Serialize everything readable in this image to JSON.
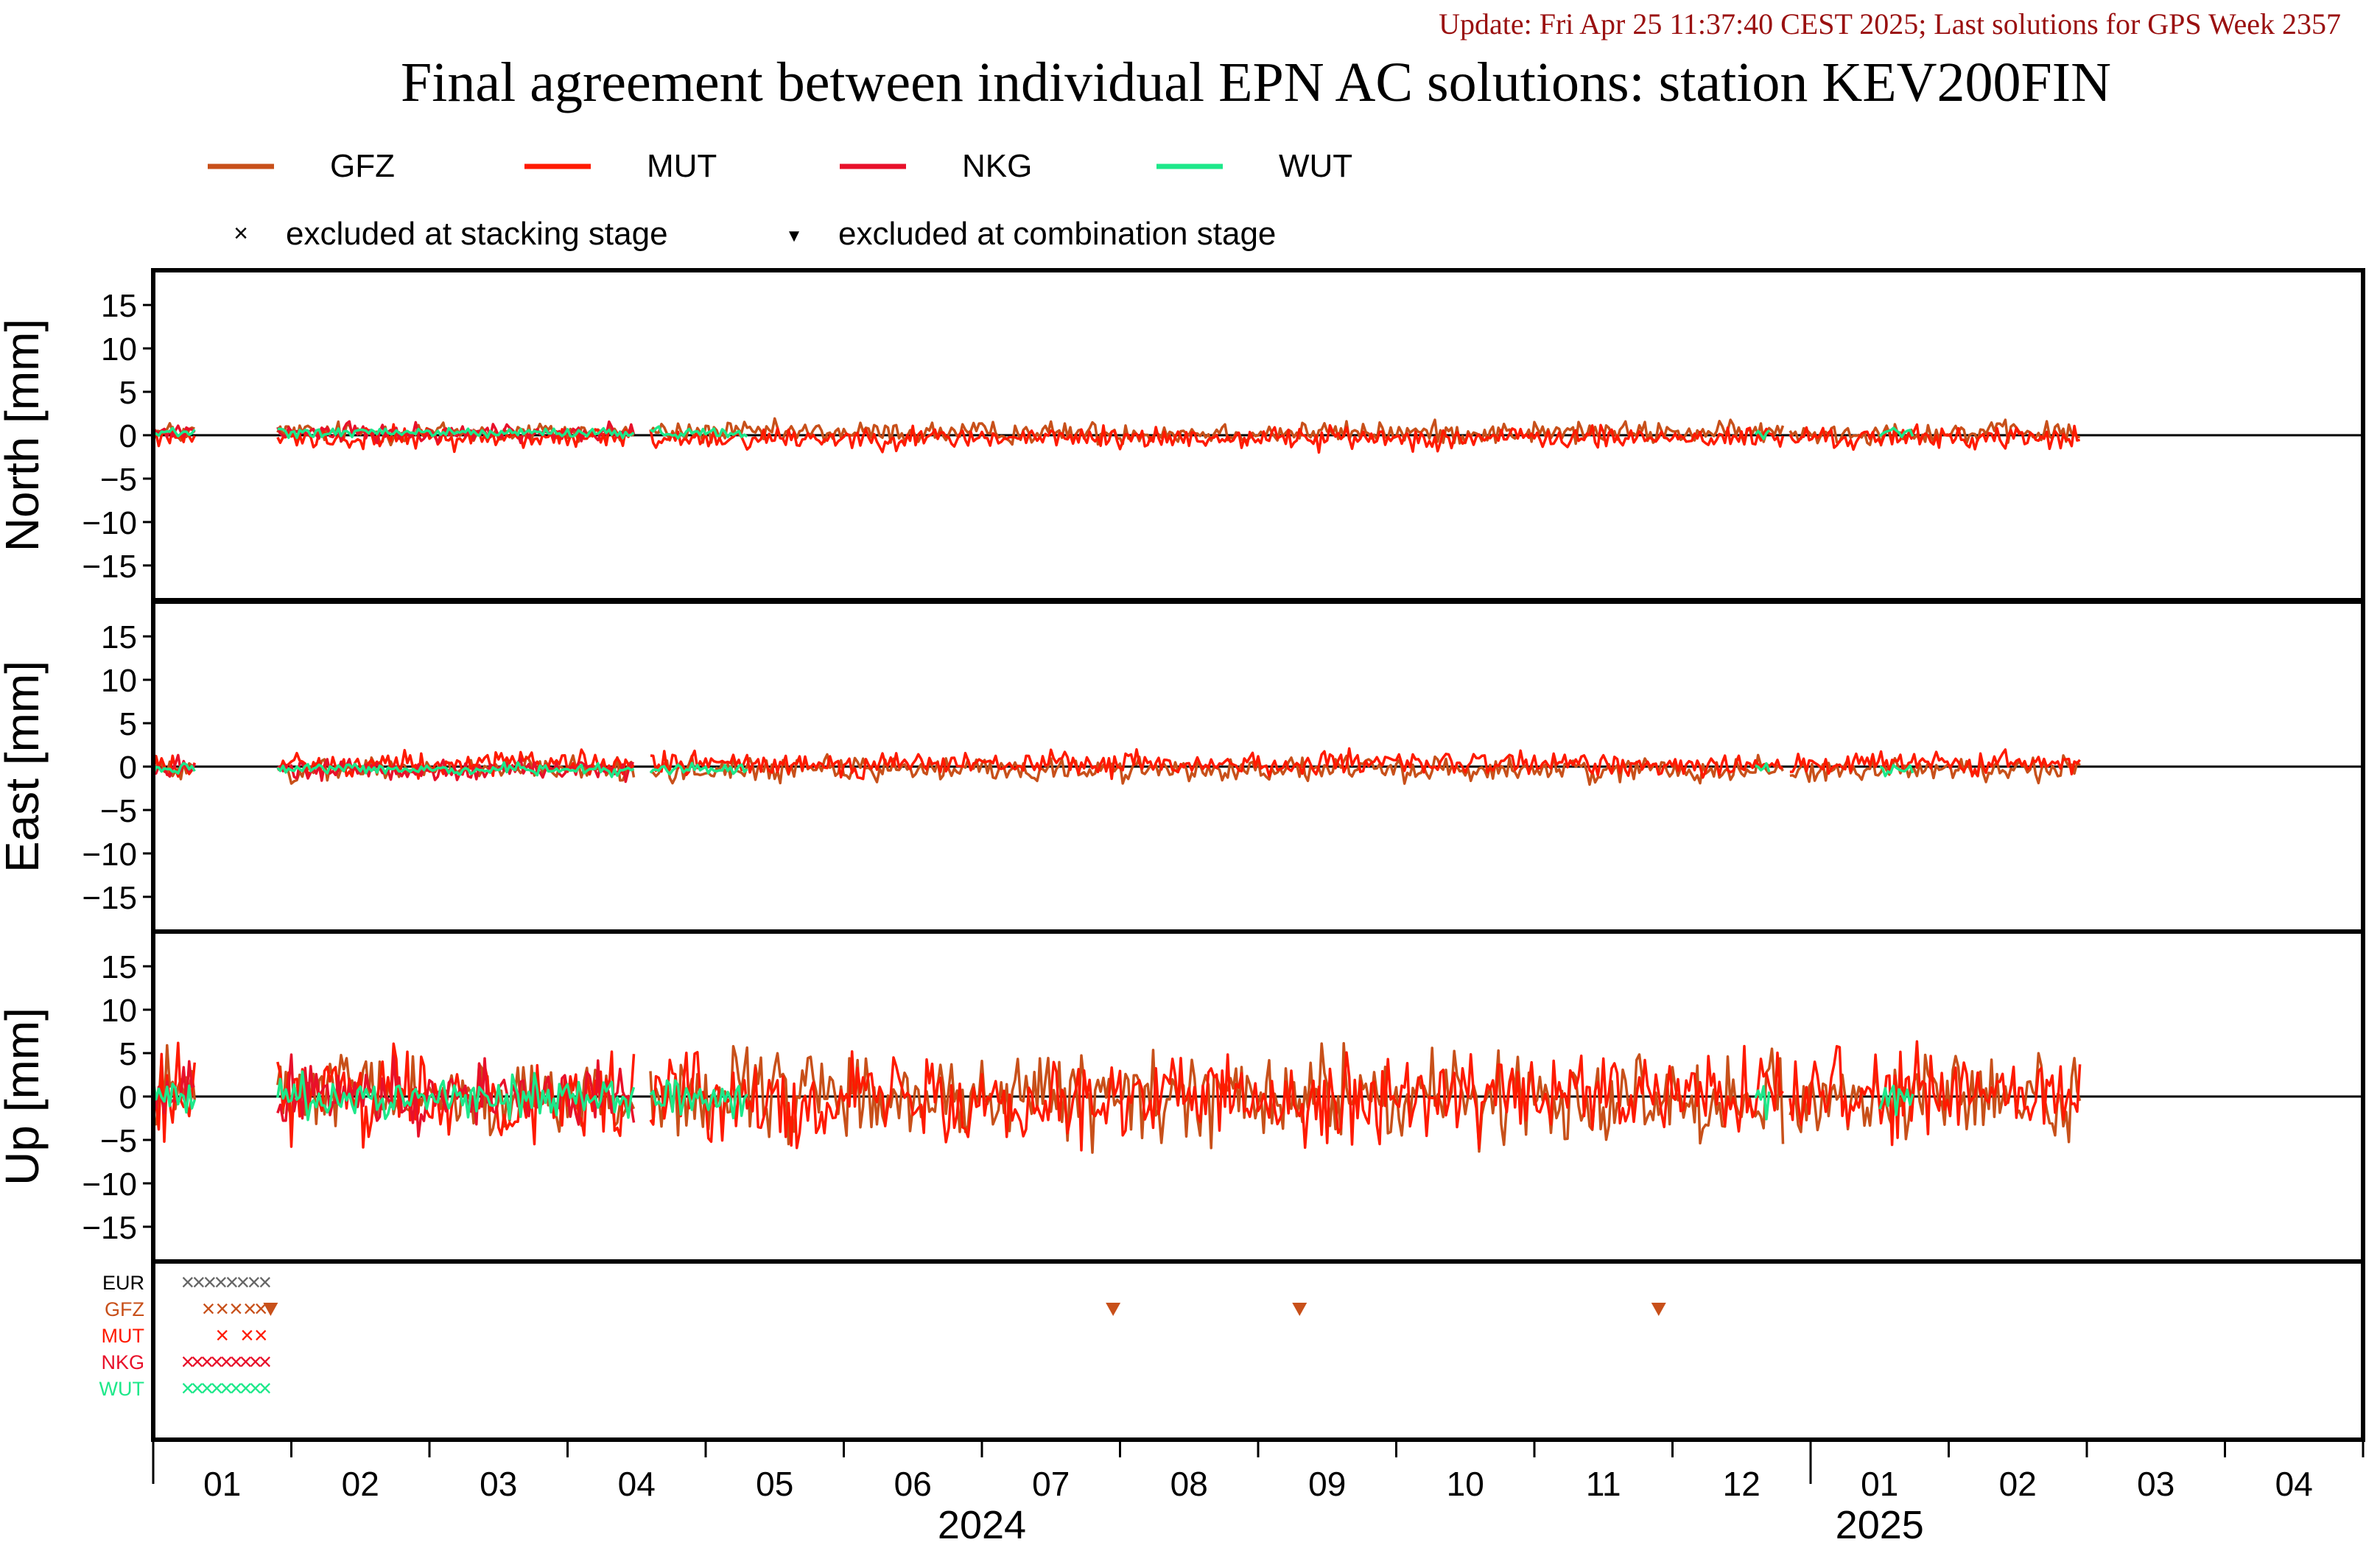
{
  "update_text": "Update: Fri Apr 25 11:37:40 CEST 2025; Last solutions for GPS Week 2357",
  "title": "Final agreement between individual EPN AC solutions: station KEV200FIN",
  "colors": {
    "GFZ": "#c8501a",
    "MUT": "#ff1a00",
    "NKG": "#e8102a",
    "WUT": "#1de88a",
    "EUR": "#666666",
    "update": "#9a1010",
    "frame": "#000000"
  },
  "legend": {
    "series": [
      "GFZ",
      "MUT",
      "NKG",
      "WUT"
    ],
    "markers": [
      {
        "symbol": "×",
        "label": "excluded at stacking stage"
      },
      {
        "symbol": "▼",
        "label": "excluded at combination stage"
      }
    ]
  },
  "chart_data": {
    "type": "line",
    "panels": [
      {
        "name": "north",
        "ylabel": "North [mm]",
        "ylim": [
          -19,
          19
        ],
        "yticks": [
          15,
          10,
          5,
          0,
          -5,
          -10,
          -15
        ],
        "amplitude": 0.9,
        "bias": 0.3
      },
      {
        "name": "east",
        "ylabel": "East [mm]",
        "ylim": [
          -19,
          19
        ],
        "yticks": [
          15,
          10,
          5,
          0,
          -5,
          -10,
          -15
        ],
        "amplitude": 1.0,
        "bias": -0.3
      },
      {
        "name": "up",
        "ylabel": "Up [mm]",
        "ylim": [
          -19,
          19
        ],
        "yticks": [
          15,
          10,
          5,
          0,
          -5,
          -10,
          -15
        ],
        "amplitude": 3.5,
        "bias": 0.0
      }
    ],
    "x_axis": {
      "months": [
        "01",
        "02",
        "03",
        "04",
        "05",
        "06",
        "07",
        "08",
        "09",
        "10",
        "11",
        "12",
        "01",
        "02",
        "03",
        "04"
      ],
      "years": [
        "2024",
        "2025"
      ]
    },
    "series": [
      {
        "name": "GFZ",
        "segments": [
          [
            0.0,
            0.3
          ],
          [
            0.9,
            3.5
          ],
          [
            3.6,
            11.8
          ],
          [
            11.85,
            13.95
          ]
        ]
      },
      {
        "name": "MUT",
        "segments": [
          [
            0.0,
            0.3
          ],
          [
            0.9,
            3.5
          ],
          [
            3.6,
            11.8
          ],
          [
            11.85,
            13.95
          ]
        ]
      },
      {
        "name": "NKG",
        "segments": [
          [
            0.0,
            0.3
          ],
          [
            0.9,
            3.5
          ]
        ]
      },
      {
        "name": "WUT",
        "segments": [
          [
            0.0,
            0.3
          ],
          [
            0.9,
            3.5
          ],
          [
            3.6,
            4.3
          ],
          [
            11.6,
            11.7
          ],
          [
            12.5,
            12.75
          ]
        ]
      }
    ],
    "exclusion_rows": [
      "EUR",
      "GFZ",
      "MUT",
      "NKG",
      "WUT"
    ],
    "excluded_stacking": {
      "EUR": [
        0.25,
        0.33,
        0.41,
        0.49,
        0.57,
        0.65,
        0.73,
        0.81
      ],
      "GFZ": [
        0.4,
        0.5,
        0.6,
        0.7,
        0.78
      ],
      "MUT": [
        0.5,
        0.68,
        0.78
      ],
      "NKG": [
        0.25,
        0.32,
        0.39,
        0.46,
        0.53,
        0.6,
        0.67,
        0.74,
        0.81
      ],
      "WUT": [
        0.25,
        0.32,
        0.39,
        0.46,
        0.53,
        0.6,
        0.67,
        0.74,
        0.81
      ]
    },
    "excluded_combination": {
      "GFZ": [
        0.85,
        6.95,
        8.3,
        10.9
      ]
    }
  }
}
